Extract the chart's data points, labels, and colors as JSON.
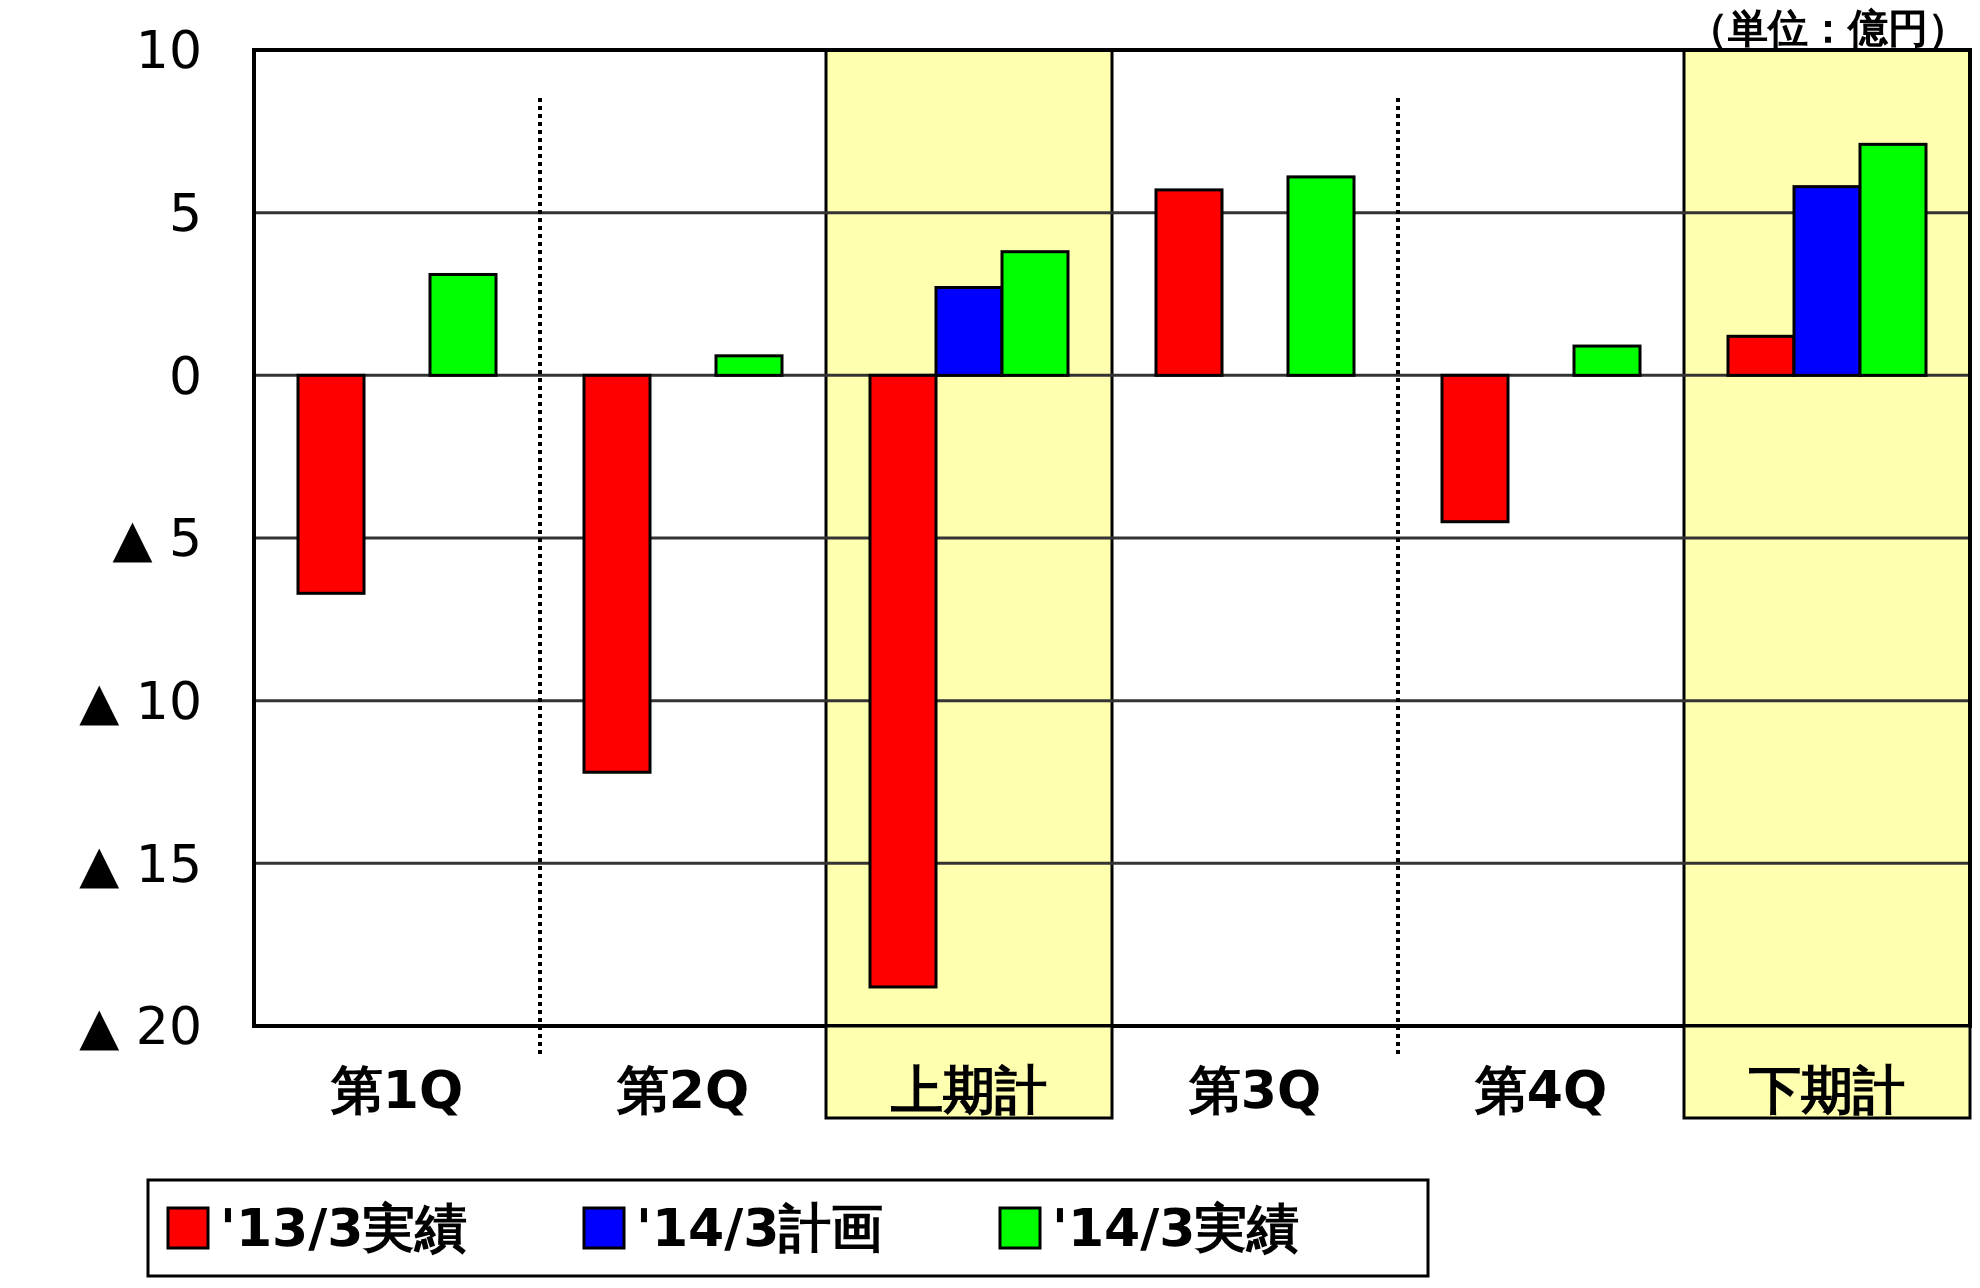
{
  "chart_data": {
    "type": "bar",
    "categories": [
      "第1Q",
      "第2Q",
      "上期計",
      "第3Q",
      "第4Q",
      "下期計"
    ],
    "series": [
      {
        "name": "'13/3実績",
        "color": "#ff0000",
        "values": [
          -6.7,
          -12.2,
          -18.8,
          5.7,
          -4.5,
          1.2
        ]
      },
      {
        "name": "'14/3計画",
        "color": "#0000ff",
        "values": [
          null,
          null,
          2.7,
          null,
          null,
          5.8
        ]
      },
      {
        "name": "'14/3実績",
        "color": "#00ff00",
        "values": [
          3.1,
          0.6,
          3.8,
          6.1,
          0.9,
          7.1
        ]
      }
    ],
    "ylim": [
      -20,
      10
    ],
    "yticks": [
      {
        "value": -20,
        "label": "▲ 20"
      },
      {
        "value": -15,
        "label": "▲ 15"
      },
      {
        "value": -10,
        "label": "▲ 10"
      },
      {
        "value": -5,
        "label": "▲ 5"
      },
      0,
      5,
      10
    ],
    "grid": "y",
    "legend": "bottom",
    "bands": [
      {
        "axis": "x",
        "from": "上期計",
        "to": "上期計",
        "color": "#ffffb0"
      },
      {
        "axis": "x",
        "from": "下期計",
        "to": "下期計",
        "color": "#ffffb0"
      }
    ],
    "annotations": [
      "（単位：億円）"
    ]
  }
}
